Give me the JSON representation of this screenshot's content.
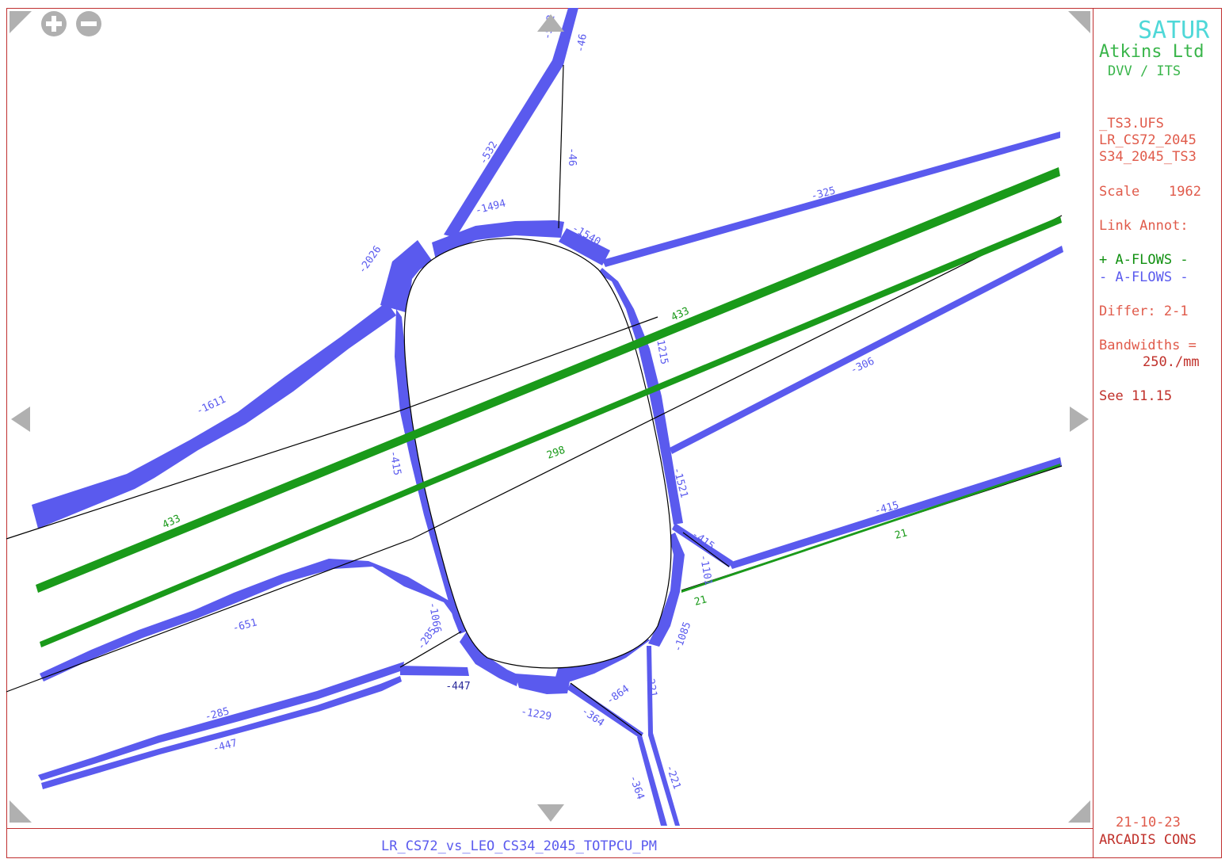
{
  "map": {
    "links": [
      {
        "label": "-532",
        "color": "#5a5aee"
      },
      {
        "label": "-46",
        "color": "#5a5aee"
      },
      {
        "label": "-532",
        "color": "#5a5aee"
      },
      {
        "label": "-46",
        "color": "#5a5aee"
      },
      {
        "label": "-1494",
        "color": "#5a5aee"
      },
      {
        "label": "-1540",
        "color": "#5a5aee"
      },
      {
        "label": "-2026",
        "color": "#5a5aee"
      },
      {
        "label": "-325",
        "color": "#5a5aee"
      },
      {
        "label": "433",
        "color": "#1a9a1a"
      },
      {
        "label": "1215",
        "color": "#5a5aee"
      },
      {
        "label": "-306",
        "color": "#5a5aee"
      },
      {
        "label": "-1611",
        "color": "#5a5aee"
      },
      {
        "label": "298",
        "color": "#1a9a1a"
      },
      {
        "label": "-415",
        "color": "#5a5aee"
      },
      {
        "label": "-1521",
        "color": "#5a5aee"
      },
      {
        "label": "433",
        "color": "#1a9a1a"
      },
      {
        "label": "-415",
        "color": "#5a5aee"
      },
      {
        "label": "-415",
        "color": "#5a5aee"
      },
      {
        "label": "21",
        "color": "#1a9a1a"
      },
      {
        "label": "-1101",
        "color": "#5a5aee"
      },
      {
        "label": "21",
        "color": "#1a9a1a"
      },
      {
        "label": "-651",
        "color": "#5a5aee"
      },
      {
        "label": "-1066",
        "color": "#5a5aee"
      },
      {
        "label": "-285",
        "color": "#5a5aee"
      },
      {
        "label": "-1085",
        "color": "#5a5aee"
      },
      {
        "label": "-447",
        "color": "#2a2a9a"
      },
      {
        "label": "-221",
        "color": "#5a5aee"
      },
      {
        "label": "-864",
        "color": "#5a5aee"
      },
      {
        "label": "-1229",
        "color": "#5a5aee"
      },
      {
        "label": "-364",
        "color": "#5a5aee"
      },
      {
        "label": "-285",
        "color": "#5a5aee"
      },
      {
        "label": "-447",
        "color": "#5a5aee"
      },
      {
        "label": "-364",
        "color": "#5a5aee"
      },
      {
        "label": "-221",
        "color": "#5a5aee"
      }
    ]
  },
  "panel": {
    "brand": "SATUR",
    "company": "Atkins Ltd",
    "dept": "DVV / ITS",
    "file1": "_TS3.UFS",
    "file2": "LR_CS72_2045",
    "file3": "S34_2045_TS3",
    "scale_label": "Scale",
    "scale_value": "1962",
    "link_annot": "Link Annot:",
    "plus_flows": "+ A-FLOWS -",
    "minus_flows": "- A-FLOWS -",
    "differ": "Differ: 2-1",
    "bandwidths": "Bandwidths =",
    "bandwidth_value": "250./mm",
    "see": "See 11.15",
    "date": "21-10-23",
    "org": "ARCADIS CONS"
  },
  "footer": {
    "title": "LR_CS72_vs_LEO_CS34_2045_TOTPCU_PM"
  },
  "controls": {
    "zoom_in": "+",
    "zoom_out": "−"
  },
  "colors": {
    "flow_negative": "#5a5aee",
    "flow_positive": "#1a9a1a",
    "frame": "#c03030",
    "arrow": "#b0b0b0"
  }
}
